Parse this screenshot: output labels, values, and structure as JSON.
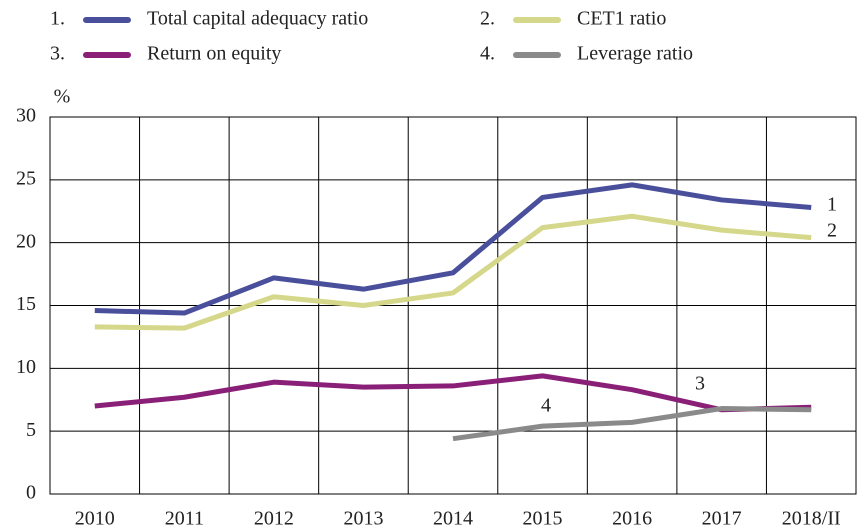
{
  "chart_data": {
    "type": "line",
    "y_label": "%",
    "categories": [
      "2010",
      "2011",
      "2012",
      "2013",
      "2014",
      "2015",
      "2016",
      "2017",
      "2018/II"
    ],
    "series": [
      {
        "name": "Total capital adequacy ratio",
        "legend_number": "1.",
        "line_label": "1",
        "color": "#4a4f9c",
        "values": [
          14.6,
          14.4,
          17.2,
          16.3,
          17.6,
          23.6,
          24.6,
          23.4,
          22.8
        ]
      },
      {
        "name": "CET1 ratio",
        "legend_number": "2.",
        "line_label": "2",
        "color": "#d5d88a",
        "values": [
          13.3,
          13.2,
          15.7,
          15.0,
          16.0,
          21.2,
          22.1,
          21.0,
          20.4
        ]
      },
      {
        "name": "Return on equity",
        "legend_number": "3.",
        "line_label": "3",
        "color": "#8a1f78",
        "values": [
          7.0,
          7.7,
          8.9,
          8.5,
          8.6,
          9.4,
          8.3,
          6.7,
          6.9
        ]
      },
      {
        "name": "Leverage ratio",
        "legend_number": "4.",
        "line_label": "4",
        "color": "#8a8a8a",
        "values": [
          null,
          null,
          null,
          null,
          4.4,
          5.4,
          5.7,
          6.8,
          6.7
        ]
      }
    ],
    "ylim": [
      0,
      30
    ],
    "yticks": [
      0,
      5,
      10,
      15,
      20,
      25,
      30
    ],
    "grid": true
  }
}
